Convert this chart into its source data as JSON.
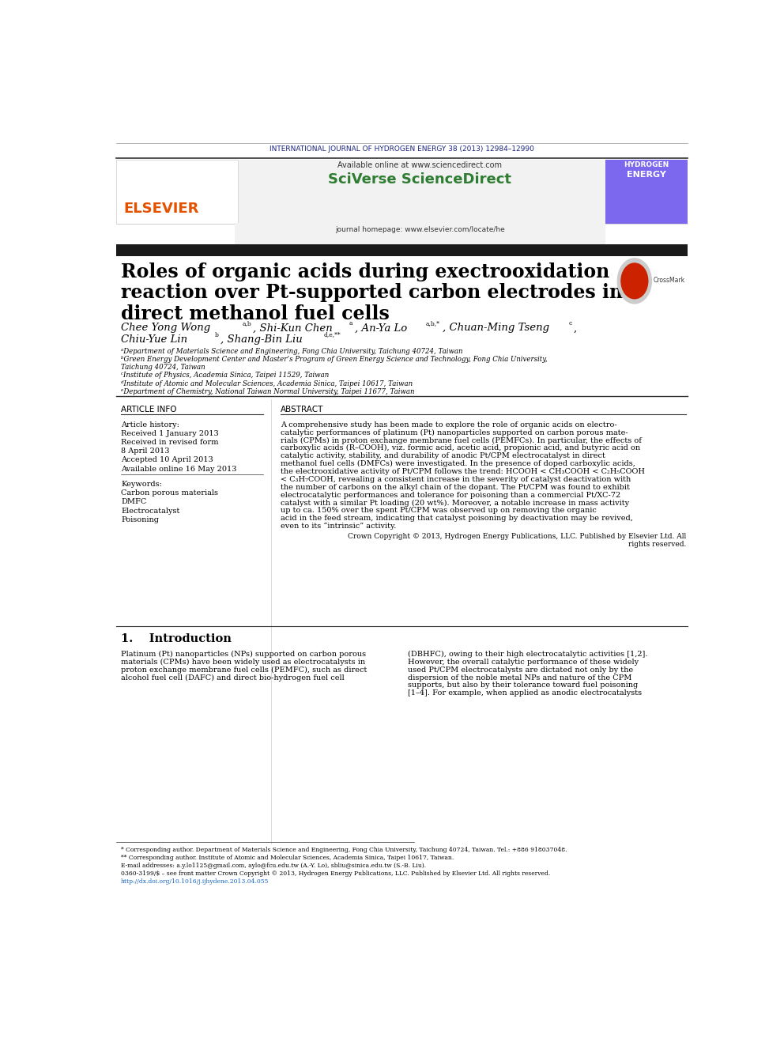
{
  "journal_header": "INTERNATIONAL JOURNAL OF HYDROGEN ENERGY 38 (2013) 12984–12990",
  "available_online": "Available online at www.sciencedirect.com",
  "sciverse_text": "SciVerse ScienceDirect",
  "journal_homepage": "journal homepage: www.elsevier.com/locate/he",
  "title_line1": "Roles of organic acids during exectrooxidation",
  "title_line2": "reaction over Pt-supported carbon electrodes in",
  "title_line3": "direct methanol fuel cells",
  "affil_a": "ᵃDepartment of Materials Science and Engineering, Fong Chia University, Taichung 40724, Taiwan",
  "affil_b": "ᵇGreen Energy Development Center and Master’s Program of Green Energy Science and Technology, Fong Chia University,",
  "affil_b2": "Taichung 40724, Taiwan",
  "affil_c": "ᶜInstitute of Physics, Academia Sinica, Taipei 11529, Taiwan",
  "affil_d": "ᵈInstitute of Atomic and Molecular Sciences, Academia Sinica, Taipei 10617, Taiwan",
  "affil_e": "ᵉDepartment of Chemistry, National Taiwan Normal University, Taipei 11677, Taiwan",
  "article_info_title": "ARTICLE INFO",
  "abstract_title": "ABSTRACT",
  "article_history": "Article history:",
  "received1": "Received 1 January 2013",
  "received_revised": "Received in revised form",
  "april8": "8 April 2013",
  "accepted": "Accepted 10 April 2013",
  "available": "Available online 16 May 2013",
  "keywords_title": "Keywords:",
  "kw1": "Carbon porous materials",
  "kw2": "DMFC",
  "kw3": "Electrocatalyst",
  "kw4": "Poisoning",
  "copyright_text": "Crown Copyright © 2013, Hydrogen Energy Publications, LLC. Published by Elsevier Ltd. All\nrights reserved.",
  "intro_title": "1.    Introduction",
  "footnote1": "* Corresponding author. Department of Materials Science and Engineering, Fong Chia University, Taichung 40724, Taiwan. Tel.: +886 918037048.",
  "footnote2": "** Corresponding author. Institute of Atomic and Molecular Sciences, Academia Sinica, Taipei 10617, Taiwan.",
  "footnote3": "E-mail addresses: a.y.lo1125@gmail.com, aylo@fcu.edu.tw (A.-Y. Lo), sbliu@sinica.edu.tw (S.-B. Liu).",
  "footnote4": "0360-3199/$ – see front matter Crown Copyright © 2013, Hydrogen Energy Publications, LLC. Published by Elsevier Ltd. All rights reserved.",
  "footnote5": "http://dx.doi.org/10.1016/j.ijhydene.2013.04.055",
  "bg_color": "#ffffff",
  "journal_color": "#1a237e",
  "sciverse_color": "#2e7d32",
  "link_color": "#1565c0",
  "elsevier_orange": "#e65100",
  "black_bar_color": "#1a1a1a"
}
